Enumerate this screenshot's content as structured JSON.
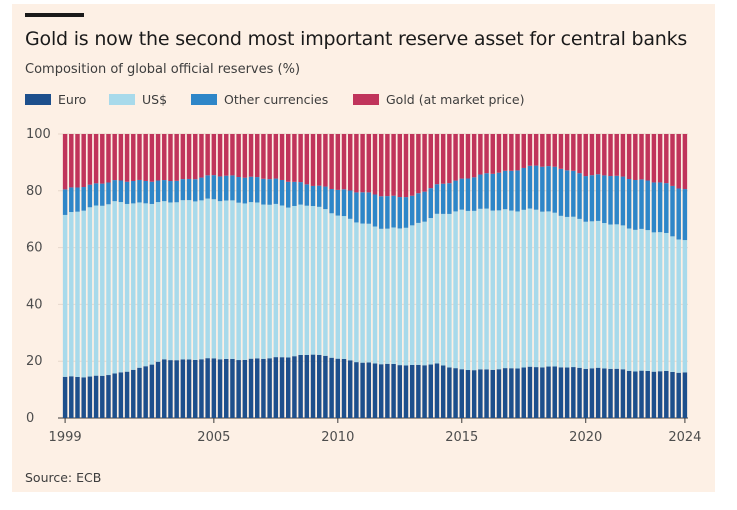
{
  "header": {
    "title": "Gold is now the second most important reserve asset for central banks",
    "subtitle": "Composition of global official reserves (%)"
  },
  "legend": [
    {
      "label": "Euro",
      "color": "#1d4f8c"
    },
    {
      "label": "US$",
      "color": "#a8daeb"
    },
    {
      "label": "Other currencies",
      "color": "#2e86c8"
    },
    {
      "label": "Gold (at market price)",
      "color": "#c0345b"
    }
  ],
  "source": "Source: ECB",
  "chart_data": {
    "type": "bar",
    "stacked": true,
    "x_start_year": 1999,
    "periods_per_year": 4,
    "xlim": [
      1999,
      2024
    ],
    "ylim": [
      0,
      100
    ],
    "y_ticks": [
      0,
      20,
      40,
      60,
      80,
      100
    ],
    "x_ticks": [
      "1999",
      "2005",
      "2010",
      "2015",
      "2020",
      "2024"
    ],
    "grid": true,
    "legend_position": "top",
    "anchors": {
      "years": [
        1999,
        2000,
        2001,
        2002,
        2003,
        2004,
        2005,
        2006,
        2007,
        2008,
        2009,
        2010,
        2011,
        2012,
        2013,
        2014,
        2015,
        2016,
        2017,
        2018,
        2019,
        2020,
        2021,
        2022,
        2023,
        2024
      ],
      "euro": [
        14.5,
        14.5,
        15.5,
        17.5,
        20.5,
        20.5,
        21,
        20.5,
        21,
        21.5,
        22.5,
        21,
        19.5,
        19,
        18.5,
        19,
        17,
        17,
        17.5,
        18,
        18,
        17.5,
        17.5,
        16.5,
        16.5,
        16
      ],
      "usd": [
        71.5,
        74,
        76,
        75.5,
        76,
        76.5,
        77,
        76,
        75.5,
        74.5,
        75,
        71.5,
        68.5,
        66.5,
        67.5,
        71.5,
        73,
        73.5,
        73,
        73.5,
        71.5,
        69.5,
        68.5,
        66.5,
        65.5,
        62.5
      ],
      "other": [
        80.5,
        82,
        83.5,
        83.5,
        83.5,
        84,
        85.5,
        85,
        84.5,
        83.5,
        82,
        80.5,
        79.5,
        78,
        78,
        82,
        84,
        86,
        87,
        89,
        88,
        85.5,
        85.5,
        84,
        83,
        80.5
      ]
    }
  }
}
